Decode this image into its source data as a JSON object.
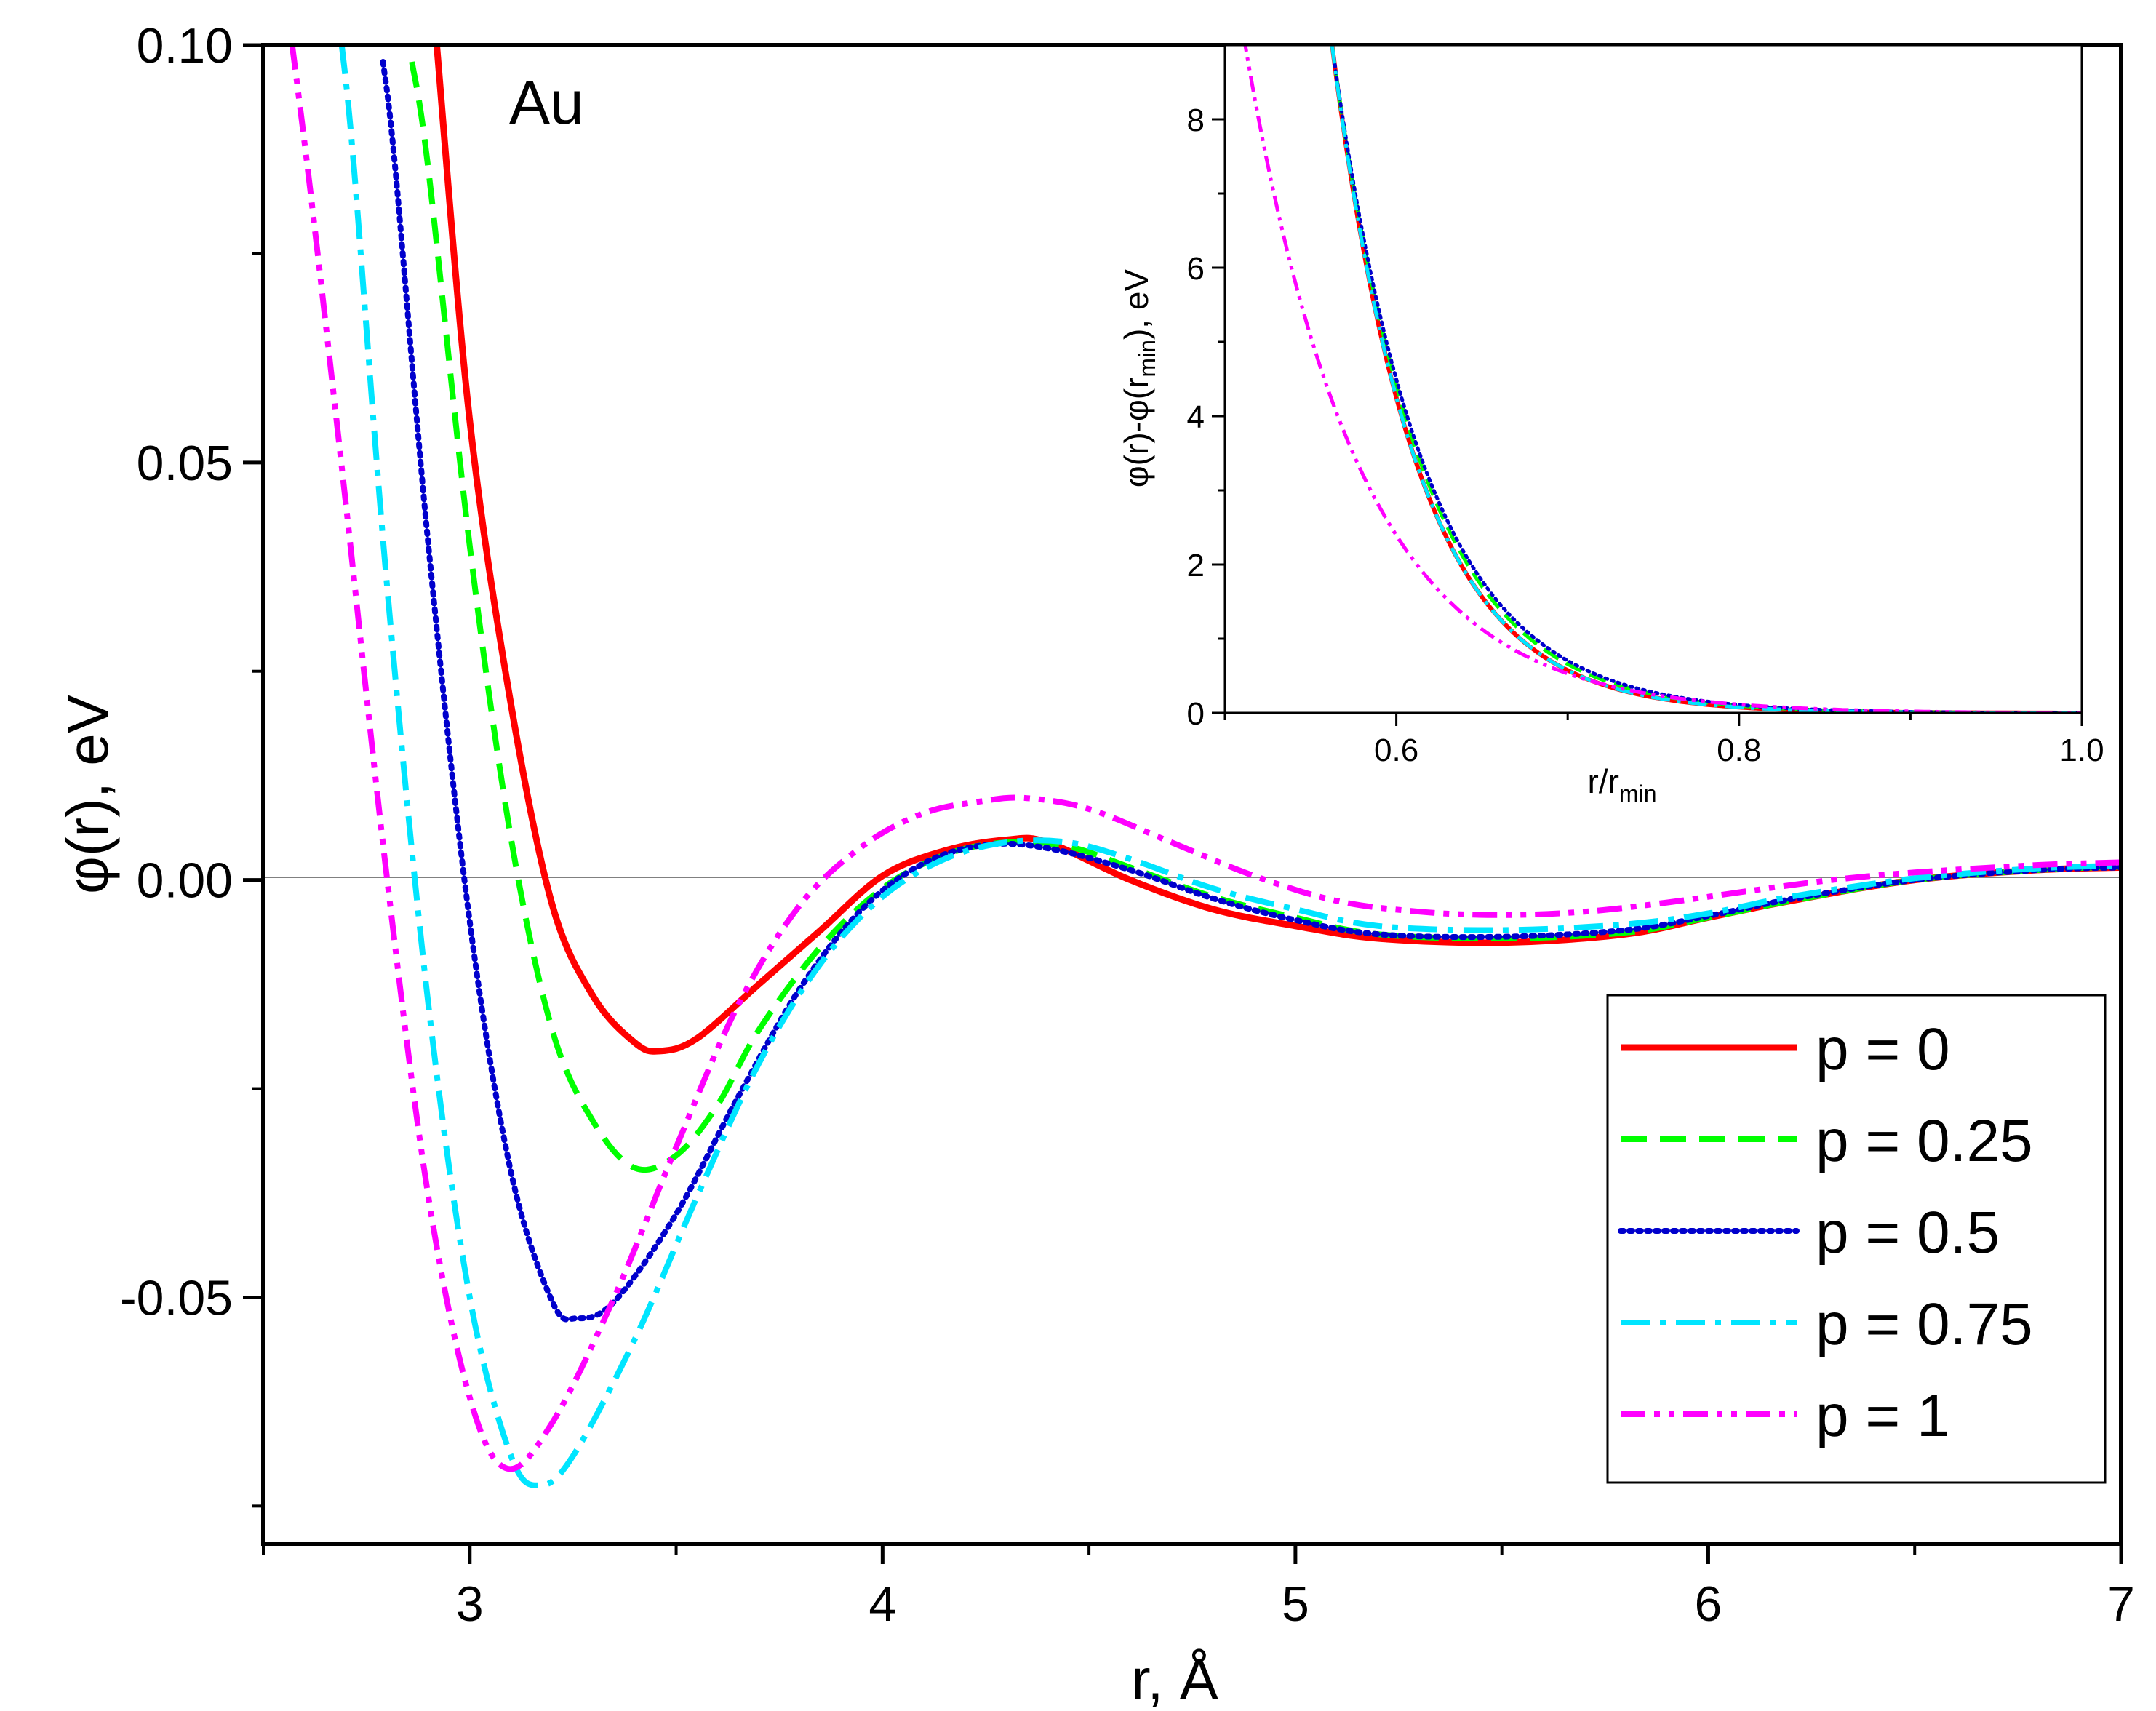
{
  "chart_data": [
    {
      "type": "line",
      "annotation": "Au",
      "xlabel": "r, Å",
      "ylabel": "φ(r), eV",
      "xlim": [
        2.5,
        7.0
      ],
      "ylim": [
        -0.0795,
        0.1
      ],
      "x_ticks": [
        3,
        4,
        5,
        6,
        7
      ],
      "x_minor_ticks": [
        2.5,
        3.5,
        4.5,
        5.5,
        6.5
      ],
      "y_ticks": [
        0.1,
        0.05,
        0.0,
        -0.05
      ],
      "y_tick_labels": [
        "0.10",
        "0.05",
        "0.00",
        "-0.05"
      ],
      "y_minor_ticks": [
        0.075,
        0.025,
        -0.025,
        -0.075
      ],
      "zero_line": true,
      "legend_position": "lower-right",
      "series": [
        {
          "name": "p = 0",
          "color": "#ff0000",
          "dash": "solid",
          "x": [
            2.92,
            3.0,
            3.1,
            3.2,
            3.3,
            3.4,
            3.46,
            3.55,
            3.7,
            3.85,
            4.0,
            4.15,
            4.3,
            4.4,
            4.6,
            4.8,
            5.0,
            5.2,
            5.5,
            5.8,
            6.0,
            6.2,
            6.5,
            6.8,
            7.0
          ],
          "y": [
            0.1,
            0.055,
            0.021,
            -0.003,
            -0.014,
            -0.0195,
            -0.0205,
            -0.019,
            -0.0125,
            -0.006,
            0.0005,
            0.0035,
            0.0048,
            0.0045,
            0.0,
            -0.0035,
            -0.0055,
            -0.007,
            -0.0075,
            -0.0065,
            -0.0045,
            -0.0025,
            0.0,
            0.0012,
            0.0015
          ]
        },
        {
          "name": "p = 0.25",
          "color": "#00ff00",
          "dash": "dashed",
          "x": [
            2.86,
            2.9,
            3.0,
            3.1,
            3.2,
            3.3,
            3.4,
            3.5,
            3.6,
            3.7,
            3.85,
            4.0,
            4.15,
            4.3,
            4.45,
            4.6,
            4.8,
            5.0,
            5.2,
            5.5,
            5.8,
            6.0,
            6.2,
            6.5,
            6.8,
            7.0
          ],
          "y": [
            0.098,
            0.085,
            0.04,
            0.005,
            -0.018,
            -0.029,
            -0.0345,
            -0.033,
            -0.027,
            -0.018,
            -0.008,
            -0.001,
            0.003,
            0.0045,
            0.004,
            0.0015,
            -0.002,
            -0.0045,
            -0.0065,
            -0.007,
            -0.0063,
            -0.0045,
            -0.0025,
            0.0,
            0.0012,
            0.0016
          ]
        },
        {
          "name": "p = 0.5",
          "color": "#0000cc",
          "dash": "dotted",
          "x": [
            2.79,
            2.82,
            2.9,
            3.0,
            3.1,
            3.2,
            3.26,
            3.35,
            3.5,
            3.65,
            3.8,
            3.95,
            4.1,
            4.25,
            4.4,
            4.6,
            4.8,
            5.0,
            5.2,
            5.5,
            5.8,
            6.0,
            6.2,
            6.5,
            6.8,
            7.0
          ],
          "y": [
            0.098,
            0.085,
            0.04,
            -0.005,
            -0.035,
            -0.0505,
            -0.0525,
            -0.0505,
            -0.04,
            -0.026,
            -0.013,
            -0.0035,
            0.002,
            0.0042,
            0.0038,
            0.0012,
            -0.0022,
            -0.0048,
            -0.0065,
            -0.0068,
            -0.006,
            -0.0043,
            -0.0023,
            0.0,
            0.0012,
            0.0015
          ]
        },
        {
          "name": "p = 0.75",
          "color": "#00e5ff",
          "dash": "dashdot",
          "x": [
            2.69,
            2.72,
            2.8,
            2.9,
            3.0,
            3.1,
            3.17,
            3.25,
            3.4,
            3.55,
            3.7,
            3.85,
            4.0,
            4.15,
            4.3,
            4.45,
            4.6,
            4.8,
            5.0,
            5.2,
            5.5,
            5.8,
            6.0,
            6.2,
            6.5,
            6.8,
            7.0
          ],
          "y": [
            0.1,
            0.085,
            0.035,
            -0.015,
            -0.05,
            -0.069,
            -0.0725,
            -0.069,
            -0.055,
            -0.038,
            -0.022,
            -0.01,
            -0.002,
            0.0025,
            0.0045,
            0.0045,
            0.0025,
            -0.001,
            -0.0035,
            -0.0055,
            -0.006,
            -0.0053,
            -0.004,
            -0.002,
            0.0002,
            0.0014,
            0.0017
          ]
        },
        {
          "name": "p = 1",
          "color": "#ff00ff",
          "dash": "dashdotdot",
          "x": [
            2.57,
            2.62,
            2.7,
            2.8,
            2.9,
            3.0,
            3.09,
            3.2,
            3.35,
            3.5,
            3.65,
            3.8,
            3.95,
            4.1,
            4.25,
            4.35,
            4.5,
            4.7,
            4.9,
            5.1,
            5.3,
            5.5,
            5.7,
            5.9,
            6.1,
            6.3,
            6.5,
            6.8,
            7.0
          ],
          "y": [
            0.1,
            0.08,
            0.045,
            0.0,
            -0.038,
            -0.062,
            -0.0705,
            -0.065,
            -0.05,
            -0.032,
            -0.015,
            -0.003,
            0.004,
            0.008,
            0.0095,
            0.0098,
            0.0085,
            0.0045,
            0.0005,
            -0.0025,
            -0.0038,
            -0.0042,
            -0.0038,
            -0.0027,
            -0.0013,
            0.0,
            0.0009,
            0.0018,
            0.0021
          ]
        }
      ]
    },
    {
      "type": "line",
      "xlabel": "r/r_min",
      "ylabel": "φ(r)-φ(r_min), eV",
      "xlim": [
        0.5,
        1.0
      ],
      "ylim": [
        0,
        9
      ],
      "x_ticks": [
        0.6,
        0.8,
        1.0
      ],
      "x_tick_labels": [
        "0.6",
        "0.8",
        "1.0"
      ],
      "x_minor_ticks": [
        0.5,
        0.7,
        0.9
      ],
      "y_ticks": [
        0,
        2,
        4,
        6,
        8
      ],
      "y_minor_ticks": [
        1,
        3,
        5,
        7,
        9
      ],
      "series": [
        {
          "name": "p = 0",
          "color": "#ff0000",
          "dash": "solid",
          "x0": 0.5625,
          "c": 1.69,
          "k": 20.0
        },
        {
          "name": "p = 0.25",
          "color": "#00ff00",
          "dash": "dashed",
          "x0": 0.5625,
          "c": 1.69,
          "k": 19.0
        },
        {
          "name": "p = 0.5",
          "color": "#0000cc",
          "dash": "dotted",
          "x0": 0.5625,
          "c": 1.69,
          "k": 18.5
        },
        {
          "name": "p = 0.75",
          "color": "#00e5ff",
          "dash": "dashdot",
          "x0": 0.5525,
          "c": 1.69,
          "k": 20.0
        },
        {
          "name": "p = 1",
          "color": "#ff00ff",
          "dash": "dashdotdot",
          "x0": 0.5,
          "c": 0.79,
          "k": 15.0
        }
      ]
    }
  ]
}
